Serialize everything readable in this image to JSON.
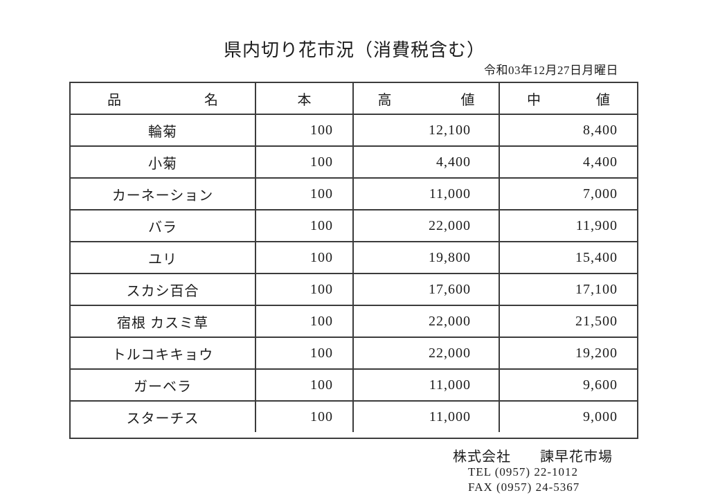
{
  "page": {
    "title": "県内切り花市況（消費税含む）",
    "date": "令和03年12月27日月曜日"
  },
  "table": {
    "headers": [
      "品　　　　　　名",
      "本",
      "高　　　　　値",
      "中　　　　値"
    ],
    "rows": [
      {
        "name": "輪菊",
        "qty": "100",
        "high": "12,100",
        "mid": "8,400"
      },
      {
        "name": "小菊",
        "qty": "100",
        "high": "4,400",
        "mid": "4,400"
      },
      {
        "name": "カーネーション",
        "qty": "100",
        "high": "11,000",
        "mid": "7,000"
      },
      {
        "name": "バラ",
        "qty": "100",
        "high": "22,000",
        "mid": "11,900"
      },
      {
        "name": "ユリ",
        "qty": "100",
        "high": "19,800",
        "mid": "15,400"
      },
      {
        "name": "スカシ百合",
        "qty": "100",
        "high": "17,600",
        "mid": "17,100"
      },
      {
        "name": "宿根 カスミ草",
        "qty": "100",
        "high": "22,000",
        "mid": "21,500"
      },
      {
        "name": "トルコキキョウ",
        "qty": "100",
        "high": "22,000",
        "mid": "19,200"
      },
      {
        "name": "ガーベラ",
        "qty": "100",
        "high": "11,000",
        "mid": "9,600"
      },
      {
        "name": "スターチス",
        "qty": "100",
        "high": "11,000",
        "mid": "9,000"
      }
    ]
  },
  "footer": {
    "company": "株式会社　　諫早花市場",
    "tel": "TEL (0957) 22-1012",
    "fax": "FAX (0957) 24-5367"
  }
}
